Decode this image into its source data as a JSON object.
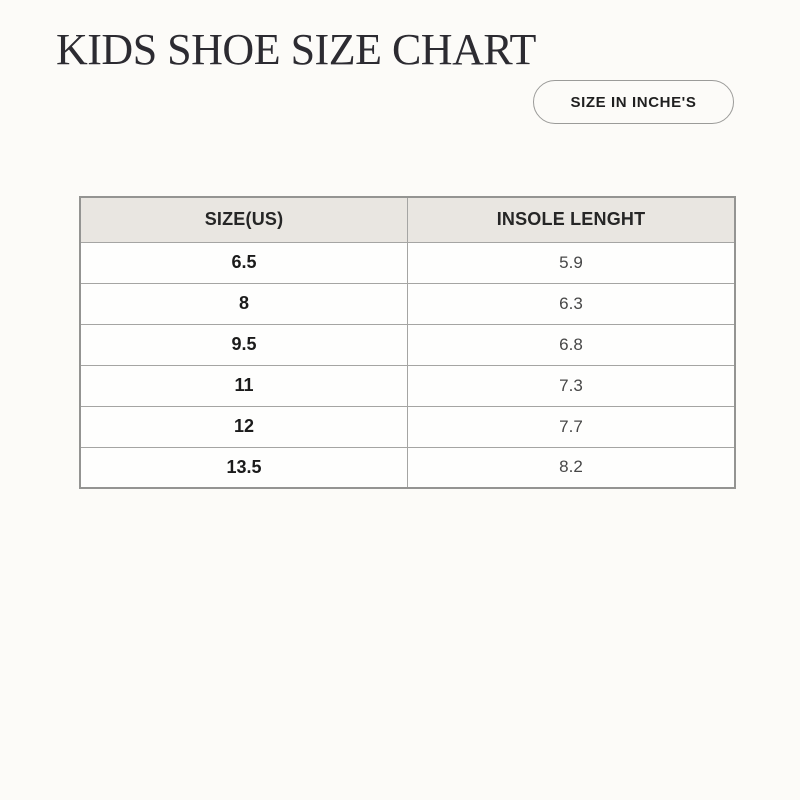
{
  "page": {
    "title": "KIDS SHOE SIZE CHART",
    "badge_label": "SIZE IN INCHE'S"
  },
  "table": {
    "headers": {
      "size": "SIZE(US)",
      "insole": "INSOLE LENGHT"
    },
    "rows": [
      {
        "size": "6.5",
        "insole": "5.9"
      },
      {
        "size": "8",
        "insole": "6.3"
      },
      {
        "size": "9.5",
        "insole": "6.8"
      },
      {
        "size": "11",
        "insole": "7.3"
      },
      {
        "size": "12",
        "insole": "7.7"
      },
      {
        "size": "13.5",
        "insole": "8.2"
      }
    ]
  },
  "chart_data": {
    "type": "table",
    "title": "KIDS SHOE SIZE CHART",
    "unit_badge": "SIZE IN INCHE'S",
    "columns": [
      "SIZE(US)",
      "INSOLE LENGHT"
    ],
    "rows": [
      [
        "6.5",
        "5.9"
      ],
      [
        "8",
        "6.3"
      ],
      [
        "9.5",
        "6.8"
      ],
      [
        "11",
        "7.3"
      ],
      [
        "12",
        "7.7"
      ],
      [
        "13.5",
        "8.2"
      ]
    ]
  },
  "colors": {
    "page_background": "#fcfbf8",
    "header_row_background": "#e9e6e1",
    "table_border": "#a5a5a3",
    "title_text": "#2c2b31"
  }
}
